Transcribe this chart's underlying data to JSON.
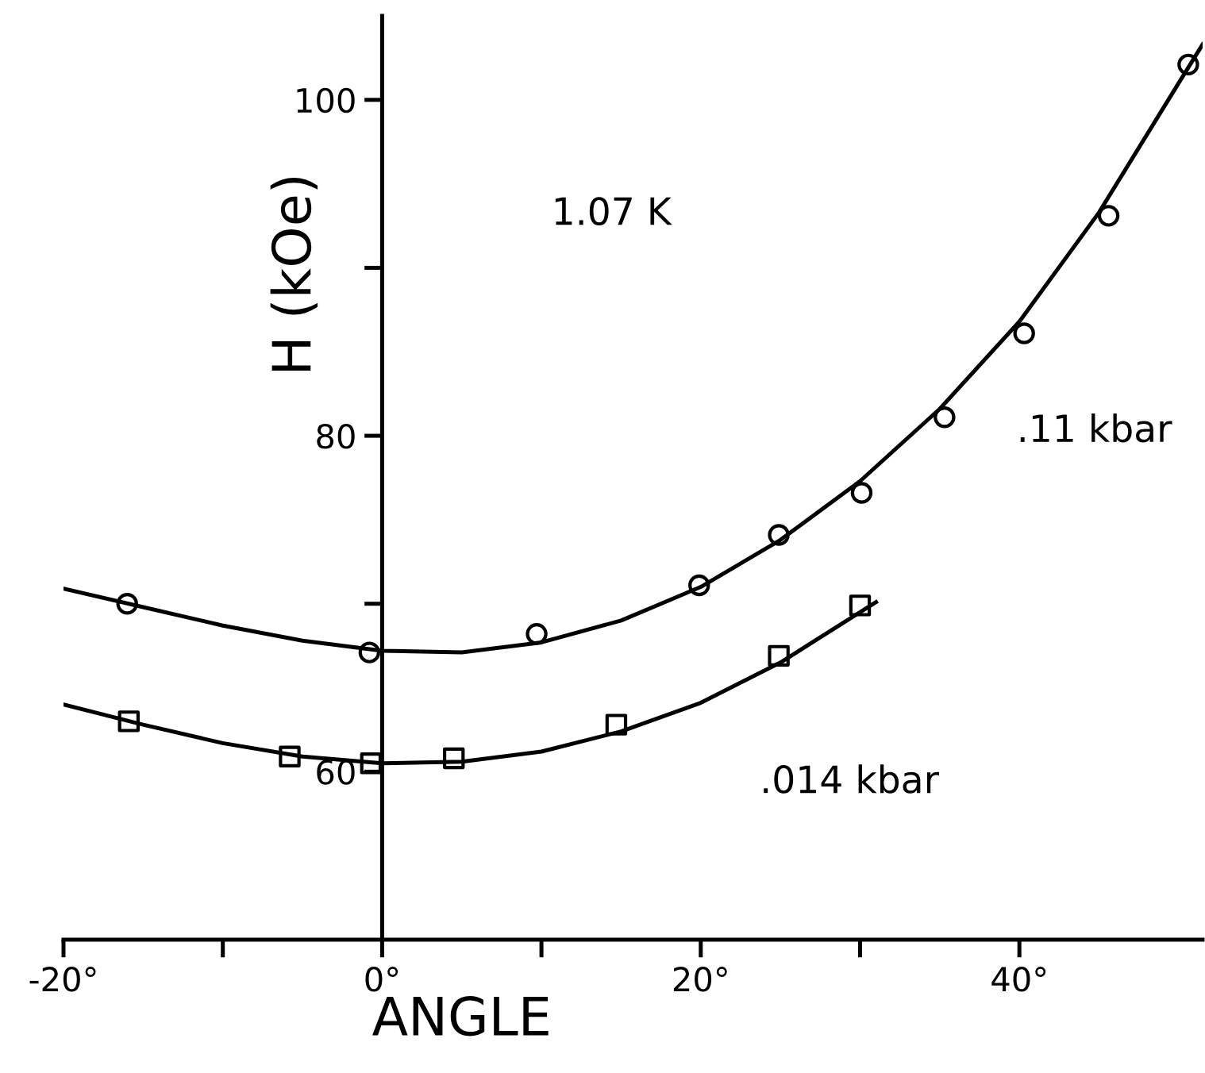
{
  "chart_data": {
    "type": "scatter",
    "xlabel": "ANGLE",
    "ylabel": "H (kOe)",
    "xlim": [
      -20,
      51.5
    ],
    "ylim": [
      50,
      105
    ],
    "xticks": [
      {
        "value": -20,
        "label": "-20°"
      },
      {
        "value": -10,
        "label": null
      },
      {
        "value": 0,
        "label": "0°"
      },
      {
        "value": 10,
        "label": null
      },
      {
        "value": 20,
        "label": "20°"
      },
      {
        "value": 30,
        "label": null
      },
      {
        "value": 40,
        "label": "40°"
      }
    ],
    "yticks": [
      60,
      {
        "value": 70,
        "label": null
      },
      80,
      {
        "value": 90,
        "label": null
      },
      100
    ],
    "grid": false,
    "legend": false,
    "annotations": [
      "1.07 K",
      ".11 kbar",
      ".014 kbar"
    ],
    "series": [
      {
        "marker": "circle",
        "color": "#000000",
        "x": [
          -16.0,
          -0.8,
          9.7,
          19.9,
          24.9,
          30.1,
          35.3,
          40.3,
          45.6,
          50.6
        ],
        "values": [
          70.0,
          67.1,
          68.2,
          71.1,
          74.1,
          76.6,
          81.1,
          86.1,
          93.1,
          102.1
        ]
      },
      {
        "marker": "square",
        "color": "#000000",
        "x": [
          -15.9,
          -5.8,
          -0.7,
          4.5,
          14.7,
          24.9,
          30.0
        ],
        "values": [
          63.0,
          60.9,
          60.5,
          60.8,
          62.8,
          66.9,
          69.9
        ]
      },
      {
        "type": "line",
        "marker": "none",
        "color": "#000000",
        "x": [
          -20,
          -15,
          -10,
          -5,
          0,
          5,
          10,
          15,
          20,
          25,
          30,
          35,
          40,
          45,
          50,
          51.5
        ],
        "values": [
          70.9,
          69.8,
          68.7,
          67.8,
          67.2,
          67.1,
          67.7,
          69.0,
          71.0,
          73.8,
          77.3,
          81.6,
          86.8,
          93.3,
          101.0,
          103.3
        ]
      },
      {
        "type": "line",
        "marker": "none",
        "color": "#000000",
        "x": [
          -20,
          -15,
          -10,
          -5,
          0,
          5,
          10,
          15,
          20,
          25,
          30,
          31
        ],
        "values": [
          64.0,
          62.8,
          61.7,
          60.9,
          60.5,
          60.6,
          61.2,
          62.4,
          64.1,
          66.5,
          69.5,
          70.1
        ]
      }
    ]
  }
}
